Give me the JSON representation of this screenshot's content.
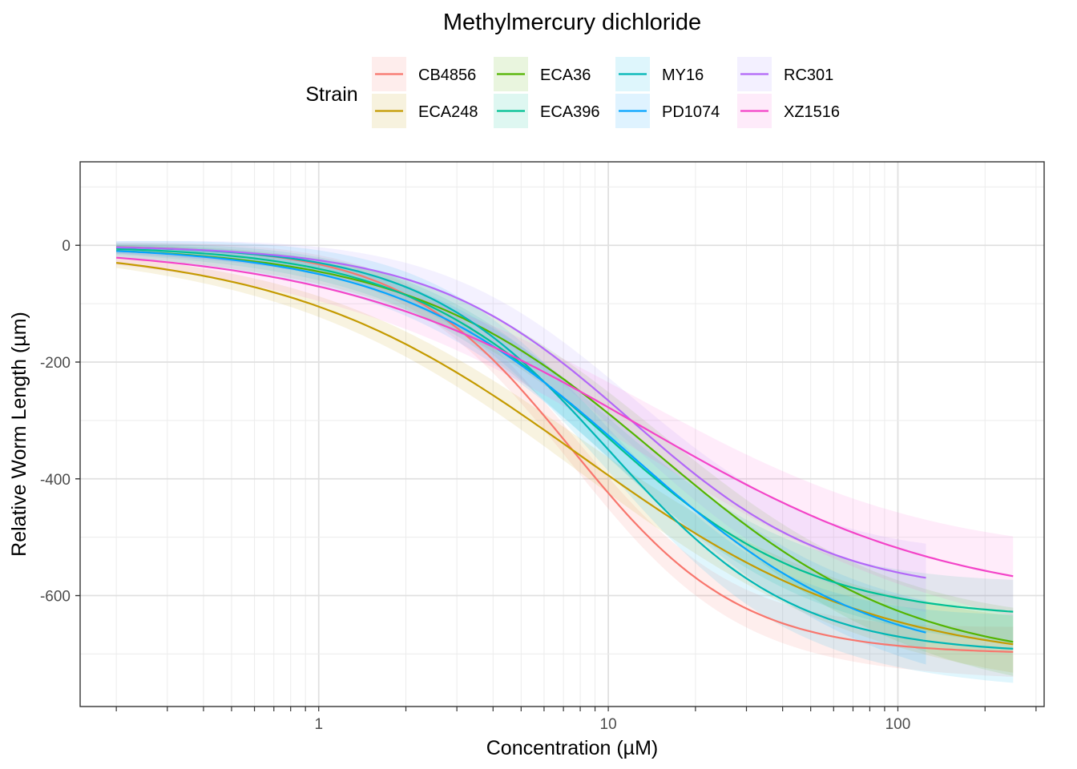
{
  "chart_data": {
    "type": "line",
    "title": "Methylmercury dichloride",
    "xlabel": "Concentration (µM)",
    "ylabel": "Relative Worm Length (µm)",
    "x_scale": "log10",
    "xlim": [
      0.15,
      320
    ],
    "ylim": [
      -790,
      143
    ],
    "x_ticks": [
      {
        "value": 1,
        "label": "1"
      },
      {
        "value": 10,
        "label": "10"
      },
      {
        "value": 100,
        "label": "100"
      }
    ],
    "y_ticks": [
      {
        "value": 0,
        "label": "0"
      },
      {
        "value": -200,
        "label": "-200"
      },
      {
        "value": -400,
        "label": "-400"
      },
      {
        "value": -600,
        "label": "-600"
      }
    ],
    "grid": true,
    "legend": {
      "title": "Strain",
      "position": "top"
    },
    "series": [
      {
        "name": "CB4856",
        "color": "#F8766D",
        "x_range": [
          0.2,
          250
        ],
        "top": 0,
        "bottom": -700,
        "ec50": 7.5,
        "hill": 1.5,
        "band": 22
      },
      {
        "name": "ECA248",
        "color": "#C49A00",
        "x_range": [
          0.2,
          250
        ],
        "top": 0,
        "bottom": -720,
        "ec50": 8.0,
        "hill": 0.85,
        "band": 25
      },
      {
        "name": "ECA36",
        "color": "#53B400",
        "x_range": [
          0.2,
          250
        ],
        "top": 0,
        "bottom": -720,
        "ec50": 15.0,
        "hill": 1.0,
        "band": 30
      },
      {
        "name": "ECA396",
        "color": "#00C094",
        "x_range": [
          0.2,
          250
        ],
        "top": 0,
        "bottom": -640,
        "ec50": 9.5,
        "hill": 1.2,
        "band": 28
      },
      {
        "name": "MY16",
        "color": "#00B6EB",
        "line_color": "#00B6B5",
        "x_range": [
          0.2,
          250
        ],
        "top": 0,
        "bottom": -700,
        "ec50": 10.0,
        "hill": 1.35,
        "band": 30
      },
      {
        "name": "PD1074",
        "color": "#06A4FF",
        "x_range": [
          0.2,
          125
        ],
        "top": 0,
        "bottom": -720,
        "ec50": 12.0,
        "hill": 1.05,
        "band": 28
      },
      {
        "name": "RC301",
        "color": "#A58AFF",
        "line_color": "#B267F8",
        "x_range": [
          0.2,
          125
        ],
        "top": 0,
        "bottom": -600,
        "ec50": 12.0,
        "hill": 1.25,
        "band": 30
      },
      {
        "name": "XZ1516",
        "color": "#FB61D7",
        "line_color": "#F344C8",
        "x_range": [
          0.2,
          250
        ],
        "top": 0,
        "bottom": -620,
        "ec50": 13.0,
        "hill": 0.8,
        "band": 35
      }
    ]
  }
}
